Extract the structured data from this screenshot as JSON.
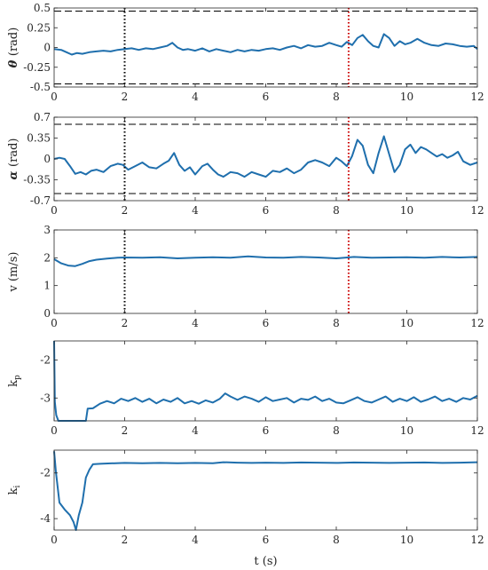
{
  "chart_data": [
    {
      "type": "line",
      "ylabel": "θ (rad)",
      "ylabel_parts": [
        "θ",
        "(rad)"
      ],
      "xlim": [
        0,
        12
      ],
      "ylim": [
        -0.5,
        0.5
      ],
      "yticks": [
        -0.5,
        -0.25,
        0,
        0.25,
        0.5
      ],
      "ytick_labels": [
        "-0.5",
        "-0.25",
        "0",
        "0.25",
        "0.5"
      ],
      "xticks": [
        0,
        2,
        4,
        6,
        8,
        10,
        12
      ],
      "xtick_labels": [
        "0",
        "2",
        "4",
        "6",
        "8",
        "10",
        "12"
      ],
      "hlines": [
        0.46,
        -0.46
      ],
      "vlines": [
        {
          "x": 2.0,
          "color": "#000000"
        },
        {
          "x": 8.35,
          "color": "#cc0000"
        }
      ],
      "series": [
        {
          "color": "#1f6fad",
          "x": [
            0,
            0.2,
            0.35,
            0.5,
            0.65,
            0.8,
            1.0,
            1.2,
            1.4,
            1.6,
            1.8,
            2.0,
            2.2,
            2.4,
            2.6,
            2.8,
            3.0,
            3.2,
            3.35,
            3.5,
            3.65,
            3.8,
            4.0,
            4.2,
            4.4,
            4.6,
            4.8,
            5.0,
            5.2,
            5.4,
            5.6,
            5.8,
            6.0,
            6.2,
            6.4,
            6.6,
            6.8,
            7.0,
            7.2,
            7.4,
            7.6,
            7.8,
            8.0,
            8.15,
            8.3,
            8.45,
            8.6,
            8.75,
            8.9,
            9.05,
            9.2,
            9.35,
            9.5,
            9.65,
            9.8,
            9.95,
            10.1,
            10.3,
            10.5,
            10.7,
            10.9,
            11.1,
            11.3,
            11.5,
            11.7,
            11.9,
            12.0
          ],
          "y": [
            -0.02,
            -0.03,
            -0.06,
            -0.09,
            -0.07,
            -0.08,
            -0.06,
            -0.05,
            -0.04,
            -0.05,
            -0.03,
            -0.02,
            -0.01,
            -0.03,
            -0.01,
            -0.02,
            0.0,
            0.02,
            0.06,
            0.0,
            -0.03,
            -0.02,
            -0.04,
            -0.01,
            -0.05,
            -0.02,
            -0.04,
            -0.06,
            -0.03,
            -0.05,
            -0.03,
            -0.04,
            -0.02,
            -0.01,
            -0.03,
            0.0,
            0.02,
            -0.01,
            0.03,
            0.01,
            0.02,
            0.06,
            0.03,
            0.01,
            0.07,
            0.03,
            0.12,
            0.16,
            0.08,
            0.02,
            0.0,
            0.17,
            0.12,
            0.02,
            0.08,
            0.04,
            0.06,
            0.11,
            0.06,
            0.03,
            0.02,
            0.05,
            0.04,
            0.02,
            0.01,
            0.02,
            -0.02
          ]
        }
      ]
    },
    {
      "type": "line",
      "ylabel": "α (rad)",
      "ylabel_parts": [
        "α",
        "(rad)"
      ],
      "xlim": [
        0,
        12
      ],
      "ylim": [
        -0.7,
        0.7
      ],
      "yticks": [
        -0.7,
        -0.35,
        0,
        0.35,
        0.7
      ],
      "ytick_labels": [
        "-0.7",
        "-0.35",
        "0",
        "0.35",
        "0.7"
      ],
      "xticks": [
        0,
        2,
        4,
        6,
        8,
        10,
        12
      ],
      "xtick_labels": [
        "0",
        "2",
        "4",
        "6",
        "8",
        "10",
        "12"
      ],
      "hlines": [
        0.58,
        -0.58
      ],
      "vlines": [
        {
          "x": 2.0,
          "color": "#000000"
        },
        {
          "x": 8.35,
          "color": "#cc0000"
        }
      ],
      "series": [
        {
          "color": "#1f6fad",
          "x": [
            0,
            0.15,
            0.3,
            0.45,
            0.6,
            0.75,
            0.9,
            1.05,
            1.2,
            1.4,
            1.6,
            1.8,
            1.95,
            2.1,
            2.3,
            2.5,
            2.7,
            2.9,
            3.1,
            3.25,
            3.4,
            3.55,
            3.7,
            3.85,
            4.0,
            4.2,
            4.35,
            4.5,
            4.65,
            4.8,
            5.0,
            5.2,
            5.4,
            5.6,
            5.8,
            6.0,
            6.2,
            6.4,
            6.6,
            6.8,
            7.0,
            7.2,
            7.4,
            7.6,
            7.8,
            8.0,
            8.15,
            8.3,
            8.45,
            8.6,
            8.75,
            8.9,
            9.05,
            9.2,
            9.35,
            9.5,
            9.65,
            9.8,
            9.95,
            10.1,
            10.25,
            10.4,
            10.55,
            10.7,
            10.85,
            11.0,
            11.15,
            11.3,
            11.45,
            11.6,
            11.8,
            12.0
          ],
          "y": [
            0.0,
            0.02,
            0.0,
            -0.12,
            -0.25,
            -0.22,
            -0.26,
            -0.2,
            -0.18,
            -0.22,
            -0.12,
            -0.08,
            -0.1,
            -0.18,
            -0.12,
            -0.06,
            -0.14,
            -0.16,
            -0.08,
            -0.03,
            0.1,
            -0.1,
            -0.2,
            -0.14,
            -0.26,
            -0.12,
            -0.08,
            -0.18,
            -0.26,
            -0.3,
            -0.22,
            -0.24,
            -0.3,
            -0.22,
            -0.26,
            -0.3,
            -0.2,
            -0.22,
            -0.16,
            -0.24,
            -0.18,
            -0.06,
            -0.02,
            -0.06,
            -0.12,
            0.02,
            -0.04,
            -0.12,
            0.05,
            0.32,
            0.22,
            -0.1,
            -0.24,
            0.1,
            0.38,
            0.08,
            -0.22,
            -0.1,
            0.16,
            0.24,
            0.1,
            0.2,
            0.16,
            0.1,
            0.04,
            0.08,
            0.02,
            0.06,
            0.12,
            -0.04,
            -0.1,
            -0.06
          ]
        }
      ]
    },
    {
      "type": "line",
      "ylabel": "v (m/s)",
      "xlim": [
        0,
        12
      ],
      "ylim": [
        0,
        3
      ],
      "yticks": [
        0,
        1,
        2,
        3
      ],
      "ytick_labels": [
        "0",
        "1",
        "2",
        "3"
      ],
      "xticks": [
        0,
        2,
        4,
        6,
        8,
        10,
        12
      ],
      "xtick_labels": [
        "0",
        "2",
        "4",
        "6",
        "8",
        "10",
        "12"
      ],
      "hlines": [],
      "vlines": [
        {
          "x": 2.0,
          "color": "#000000"
        },
        {
          "x": 8.35,
          "color": "#cc0000"
        }
      ],
      "series": [
        {
          "color": "#1f6fad",
          "x": [
            0,
            0.2,
            0.4,
            0.6,
            0.8,
            1.0,
            1.2,
            1.5,
            1.8,
            2.0,
            2.5,
            3.0,
            3.5,
            4.0,
            4.5,
            5.0,
            5.5,
            6.0,
            6.5,
            7.0,
            7.5,
            8.0,
            8.5,
            9.0,
            9.5,
            10.0,
            10.5,
            11.0,
            11.5,
            12.0
          ],
          "y": [
            1.95,
            1.8,
            1.72,
            1.7,
            1.78,
            1.88,
            1.93,
            1.97,
            2.0,
            2.01,
            2.0,
            2.02,
            1.98,
            2.0,
            2.02,
            2.0,
            2.05,
            2.01,
            2.0,
            2.03,
            2.01,
            1.98,
            2.03,
            2.0,
            2.01,
            2.02,
            2.0,
            2.03,
            2.01,
            2.03
          ]
        }
      ]
    },
    {
      "type": "line",
      "ylabel": "kp",
      "ylabel_main": "k",
      "ylabel_sub": "p",
      "xlim": [
        0,
        12
      ],
      "ylim": [
        -3.6,
        -1.5
      ],
      "yticks": [
        -3,
        -2
      ],
      "ytick_labels": [
        "-3",
        "-2"
      ],
      "xticks": [
        0,
        2,
        4,
        6,
        8,
        10,
        12
      ],
      "xtick_labels": [
        "0",
        "2",
        "4",
        "6",
        "8",
        "10",
        "12"
      ],
      "hlines": [],
      "vlines": [],
      "series": [
        {
          "color": "#1f6fad",
          "x": [
            0,
            0.02,
            0.06,
            0.12,
            0.3,
            0.6,
            0.9,
            0.95,
            1.1,
            1.3,
            1.5,
            1.7,
            1.9,
            2.1,
            2.3,
            2.5,
            2.7,
            2.9,
            3.1,
            3.3,
            3.5,
            3.7,
            3.9,
            4.1,
            4.3,
            4.5,
            4.7,
            4.85,
            5.0,
            5.2,
            5.4,
            5.6,
            5.8,
            6.0,
            6.2,
            6.4,
            6.6,
            6.8,
            7.0,
            7.2,
            7.4,
            7.6,
            7.8,
            8.0,
            8.2,
            8.4,
            8.6,
            8.8,
            9.0,
            9.2,
            9.4,
            9.6,
            9.8,
            10.0,
            10.2,
            10.4,
            10.6,
            10.8,
            11.0,
            11.2,
            11.4,
            11.6,
            11.8,
            12.0
          ],
          "y": [
            -1.5,
            -3.1,
            -3.45,
            -3.6,
            -3.6,
            -3.6,
            -3.6,
            -3.28,
            -3.27,
            -3.15,
            -3.08,
            -3.14,
            -3.02,
            -3.08,
            -3.0,
            -3.1,
            -3.02,
            -3.14,
            -3.04,
            -3.1,
            -3.0,
            -3.14,
            -3.08,
            -3.15,
            -3.06,
            -3.12,
            -3.02,
            -2.88,
            -2.96,
            -3.05,
            -2.96,
            -3.02,
            -3.1,
            -2.98,
            -3.08,
            -3.04,
            -3.0,
            -3.12,
            -3.02,
            -3.05,
            -2.96,
            -3.08,
            -3.02,
            -3.12,
            -3.14,
            -3.06,
            -2.98,
            -3.08,
            -3.12,
            -3.04,
            -2.96,
            -3.1,
            -3.02,
            -3.08,
            -2.98,
            -3.1,
            -3.04,
            -2.96,
            -3.08,
            -3.02,
            -3.1,
            -3.0,
            -3.04,
            -2.94
          ]
        }
      ]
    },
    {
      "type": "line",
      "ylabel": "ki",
      "ylabel_main": "k",
      "ylabel_sub": "i",
      "xlabel": "t (s)",
      "xlim": [
        0,
        12
      ],
      "ylim": [
        -4.5,
        -1.0
      ],
      "yticks": [
        -4,
        -2
      ],
      "ytick_labels": [
        "-4",
        "-2"
      ],
      "xticks": [
        0,
        2,
        4,
        6,
        8,
        10,
        12
      ],
      "xtick_labels": [
        "0",
        "2",
        "4",
        "6",
        "8",
        "10",
        "12"
      ],
      "hlines": [],
      "vlines": [],
      "series": [
        {
          "color": "#1f6fad",
          "x": [
            0,
            0.05,
            0.15,
            0.3,
            0.45,
            0.55,
            0.62,
            0.7,
            0.8,
            0.9,
            1.0,
            1.1,
            1.3,
            1.6,
            2.0,
            2.5,
            3.0,
            3.5,
            4.0,
            4.5,
            4.8,
            5.2,
            5.6,
            6.0,
            6.5,
            7.0,
            7.5,
            8.0,
            8.5,
            9.0,
            9.5,
            10.0,
            10.5,
            11.0,
            11.5,
            12.0
          ],
          "y": [
            -1.05,
            -1.95,
            -3.3,
            -3.6,
            -3.85,
            -4.15,
            -4.5,
            -3.85,
            -3.3,
            -2.2,
            -1.85,
            -1.62,
            -1.6,
            -1.58,
            -1.56,
            -1.57,
            -1.56,
            -1.57,
            -1.56,
            -1.57,
            -1.53,
            -1.55,
            -1.56,
            -1.55,
            -1.56,
            -1.54,
            -1.55,
            -1.56,
            -1.54,
            -1.55,
            -1.56,
            -1.55,
            -1.54,
            -1.56,
            -1.55,
            -1.53
          ]
        }
      ]
    }
  ]
}
